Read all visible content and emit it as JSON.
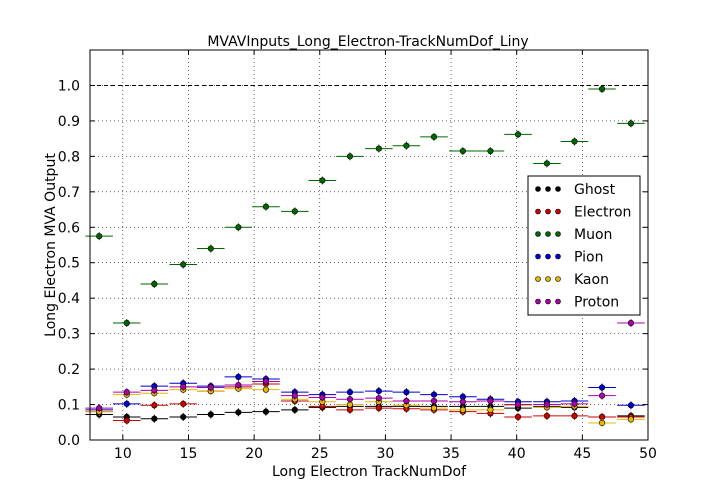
{
  "chart_data": {
    "type": "scatter",
    "title": "MVAVInputs_Long_Electron-TrackNumDof_Liny",
    "xlabel": "Long Electron TrackNumDof",
    "ylabel": "Long Electron MVA Output",
    "xlim": [
      7.5,
      50
    ],
    "ylim": [
      0.0,
      1.1
    ],
    "xticks": [
      "10",
      "15",
      "20",
      "25",
      "30",
      "35",
      "40",
      "45",
      "50"
    ],
    "yticks": [
      "0.0",
      "0.1",
      "0.2",
      "0.3",
      "0.4",
      "0.5",
      "0.6",
      "0.7",
      "0.8",
      "0.9",
      "1.0"
    ],
    "grid": true,
    "reference_line_y": 1.0,
    "legend_position": "right",
    "x": [
      8.2,
      10.3,
      12.4,
      14.6,
      16.7,
      18.8,
      20.9,
      23.1,
      25.2,
      27.3,
      29.5,
      31.6,
      33.7,
      35.9,
      38.0,
      40.1,
      42.3,
      44.4,
      46.5,
      48.7
    ],
    "series": [
      {
        "name": "Ghost",
        "color": "#000000",
        "values": [
          0.072,
          0.065,
          0.06,
          0.065,
          0.072,
          0.078,
          0.08,
          0.085,
          0.092,
          0.095,
          0.095,
          0.095,
          0.095,
          0.095,
          0.095,
          0.09,
          0.095,
          0.092,
          0.065,
          0.068
        ]
      },
      {
        "name": "Electron",
        "color": "#cc0000",
        "values": [
          0.08,
          0.055,
          0.098,
          0.102,
          0.138,
          0.15,
          0.158,
          0.11,
          0.095,
          0.085,
          0.09,
          0.088,
          0.085,
          0.08,
          0.075,
          0.065,
          0.068,
          0.068,
          0.065,
          0.065
        ]
      },
      {
        "name": "Muon",
        "color": "#006600",
        "values": [
          0.575,
          0.33,
          0.44,
          0.495,
          0.54,
          0.6,
          0.658,
          0.645,
          0.732,
          0.8,
          0.822,
          0.83,
          0.855,
          0.815,
          0.815,
          0.862,
          0.78,
          0.842,
          0.99,
          0.893
        ]
      },
      {
        "name": "Pion",
        "color": "#0000cc",
        "values": [
          0.085,
          0.102,
          0.152,
          0.16,
          0.152,
          0.178,
          0.172,
          0.135,
          0.128,
          0.135,
          0.138,
          0.135,
          0.128,
          0.122,
          0.115,
          0.108,
          0.108,
          0.11,
          0.148,
          0.098
        ]
      },
      {
        "name": "Kaon",
        "color": "#e6b800",
        "values": [
          0.08,
          0.128,
          0.132,
          0.142,
          0.138,
          0.145,
          0.142,
          0.115,
          0.108,
          0.1,
          0.108,
          0.098,
          0.09,
          0.085,
          0.085,
          0.098,
          0.092,
          0.095,
          0.048,
          0.058
        ]
      },
      {
        "name": "Proton",
        "color": "#aa00aa",
        "values": [
          0.09,
          0.135,
          0.14,
          0.15,
          0.148,
          0.155,
          0.165,
          0.125,
          0.12,
          0.115,
          0.118,
          0.11,
          0.11,
          0.108,
          0.11,
          0.1,
          0.1,
          0.102,
          0.125,
          0.33
        ]
      }
    ]
  }
}
